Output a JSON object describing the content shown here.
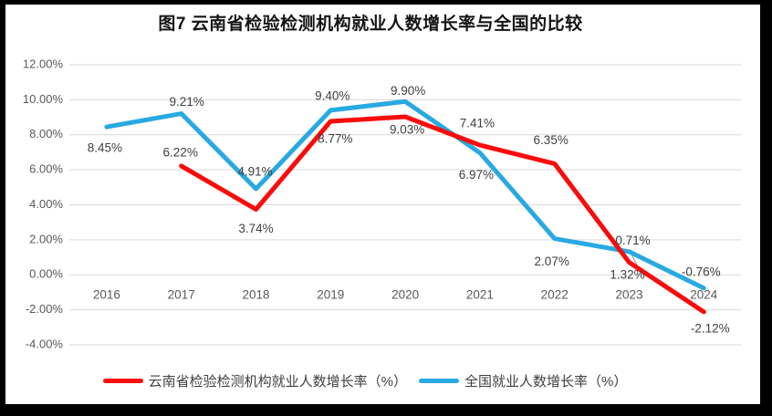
{
  "chart_data": {
    "type": "line",
    "title": "图7 云南省检验检测机构就业人数增长率与全国的比较",
    "categories": [
      "2016",
      "2017",
      "2018",
      "2019",
      "2020",
      "2021",
      "2022",
      "2023",
      "2024"
    ],
    "ylim": [
      -4,
      12
    ],
    "grid": "horizontal",
    "grid_color": "#d9d9d9",
    "legend_position": "bottom",
    "y_ticks": [
      {
        "label": "12.00%",
        "value": 12
      },
      {
        "label": "10.00%",
        "value": 10
      },
      {
        "label": "8.00%",
        "value": 8
      },
      {
        "label": "6.00%",
        "value": 6
      },
      {
        "label": "4.00%",
        "value": 4
      },
      {
        "label": "2.00%",
        "value": 2
      },
      {
        "label": "0.00%",
        "value": 0
      },
      {
        "label": "-2.00%",
        "value": -2
      },
      {
        "label": "-4.00%",
        "value": -4
      }
    ],
    "series": [
      {
        "name": "云南省检验检测机构就业人数增长率（%）",
        "color": "#fb0b0b",
        "values": [
          null,
          6.22,
          3.74,
          8.77,
          9.03,
          7.41,
          6.35,
          0.71,
          -2.12
        ],
        "labels": [
          "",
          "6.22%",
          "3.74%",
          "8.77%",
          "9.03%",
          "7.41%",
          "6.35%",
          "0.71%",
          "-2.12%"
        ],
        "label_offsets": [
          [
            0,
            0
          ],
          [
            -1,
            -14
          ],
          [
            0,
            22
          ],
          [
            5,
            20
          ],
          [
            2,
            15
          ],
          [
            -3,
            -23
          ],
          [
            -4,
            -25
          ],
          [
            4,
            -23
          ],
          [
            7,
            19
          ]
        ]
      },
      {
        "name": "全国就业人数增长率（%）",
        "color": "#29a9e1",
        "values": [
          8.45,
          9.21,
          4.91,
          9.4,
          9.9,
          6.97,
          2.07,
          1.32,
          -0.76
        ],
        "labels": [
          "8.45%",
          "9.21%",
          "4.91%",
          "9.40%",
          "9.90%",
          "6.97%",
          "2.07%",
          "1.32%",
          "-0.76%"
        ],
        "label_offsets": [
          [
            -2,
            24
          ],
          [
            6,
            -12
          ],
          [
            -1,
            -18
          ],
          [
            2,
            -15
          ],
          [
            3,
            -11
          ],
          [
            -4,
            25
          ],
          [
            -3,
            26
          ],
          [
            -2,
            26
          ],
          [
            -3,
            -17
          ]
        ]
      }
    ],
    "leader_point": {
      "series": 1,
      "index": 7
    }
  }
}
